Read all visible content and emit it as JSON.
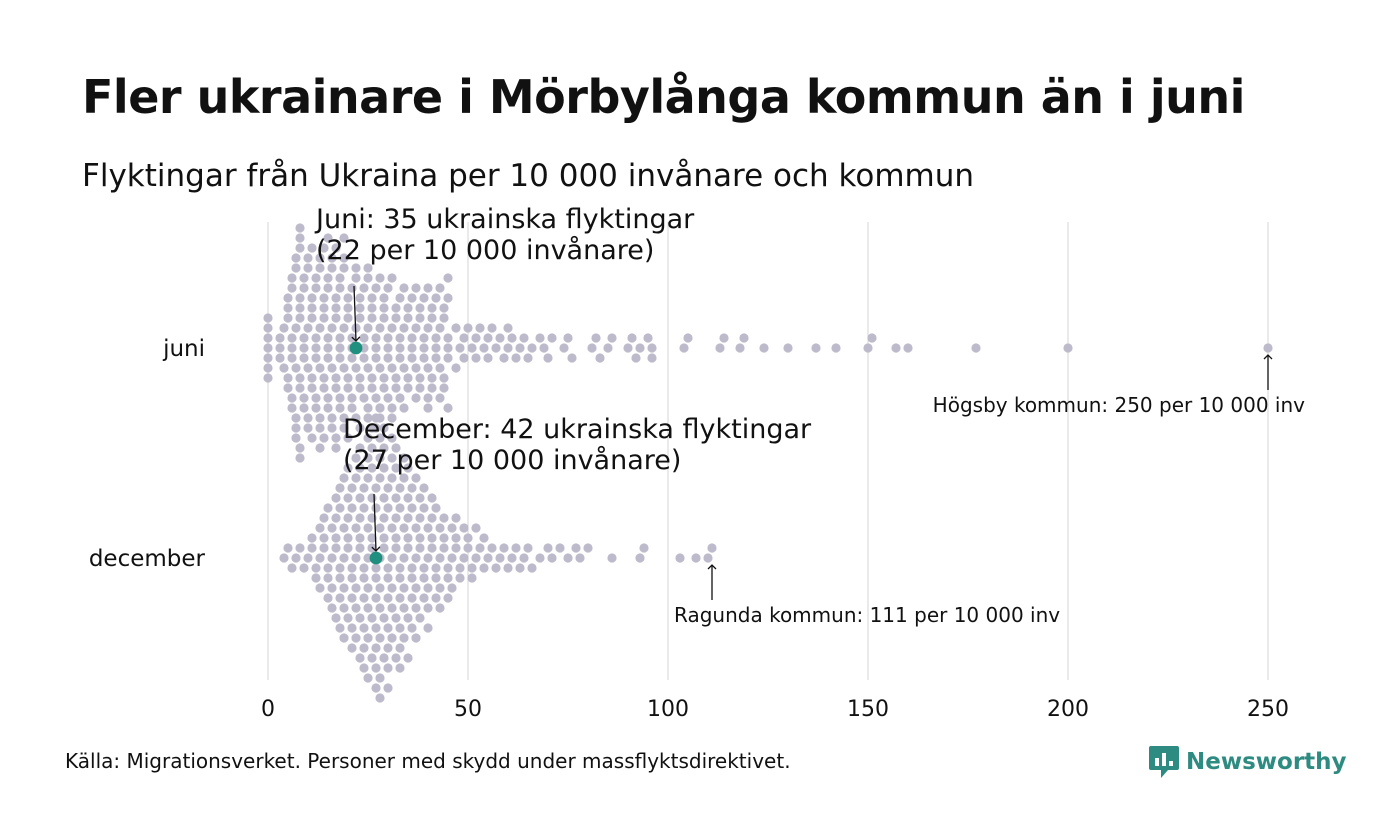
{
  "header": {
    "title": "Fler ukrainare i Mörbylånga kommun än i juni",
    "subtitle": "Flyktingar från Ukraina per 10 000 invånare och kommun"
  },
  "colors": {
    "dot": "#bdbbcb",
    "highlight": "#1f8f80",
    "grid": "#d4d4d4",
    "brand": "#2e8b81"
  },
  "chart_data": {
    "type": "scatter",
    "xlim": [
      0,
      250
    ],
    "x_ticks": [
      "0",
      "50",
      "100",
      "150",
      "200",
      "250"
    ],
    "grid": true,
    "series": [
      {
        "name": "juni",
        "highlight_value": 22,
        "annotation_lines": [
          "Juni: 35 ukrainska flyktingar",
          "(22 per 10 000 invånare)"
        ],
        "extreme_label": "Högsby kommun: 250 per 10 000 inv",
        "extreme_value": 250,
        "values": [
          0,
          0,
          0,
          0,
          0,
          0,
          0,
          3,
          3,
          3,
          4,
          4,
          5,
          5,
          5,
          5,
          5,
          6,
          6,
          6,
          6,
          6,
          6,
          6,
          7,
          7,
          7,
          7,
          7,
          7,
          7,
          8,
          8,
          8,
          8,
          8,
          8,
          8,
          8,
          8,
          8,
          9,
          9,
          9,
          9,
          9,
          9,
          9,
          10,
          10,
          10,
          10,
          10,
          10,
          11,
          11,
          11,
          11,
          11,
          11,
          11,
          12,
          12,
          12,
          12,
          12,
          12,
          12,
          13,
          13,
          13,
          13,
          13,
          13,
          13,
          14,
          14,
          14,
          14,
          14,
          14,
          14,
          15,
          15,
          15,
          15,
          15,
          15,
          15,
          15,
          16,
          16,
          16,
          16,
          16,
          16,
          17,
          17,
          17,
          17,
          17,
          17,
          17,
          17,
          18,
          18,
          18,
          18,
          18,
          18,
          18,
          19,
          19,
          19,
          19,
          19,
          19,
          19,
          20,
          20,
          20,
          20,
          20,
          20,
          21,
          21,
          21,
          21,
          21,
          21,
          22,
          22,
          22,
          22,
          22,
          23,
          23,
          23,
          23,
          23,
          23,
          24,
          24,
          24,
          24,
          24,
          25,
          25,
          25,
          25,
          25,
          25,
          26,
          26,
          26,
          26,
          26,
          27,
          27,
          27,
          27,
          27,
          27,
          28,
          28,
          28,
          28,
          28,
          29,
          29,
          29,
          29,
          29,
          30,
          30,
          30,
          30,
          30,
          31,
          31,
          31,
          31,
          31,
          32,
          32,
          32,
          32,
          33,
          33,
          33,
          33,
          33,
          34,
          34,
          34,
          34,
          35,
          35,
          35,
          35,
          36,
          36,
          36,
          36,
          37,
          37,
          37,
          37,
          38,
          38,
          38,
          38,
          39,
          39,
          39,
          39,
          40,
          40,
          40,
          40,
          40,
          41,
          41,
          41,
          41,
          42,
          42,
          42,
          42,
          43,
          43,
          43,
          43,
          44,
          44,
          44,
          44,
          45,
          45,
          45,
          45,
          45,
          45,
          47,
          47,
          48,
          49,
          49,
          50,
          51,
          52,
          52,
          53,
          54,
          55,
          55,
          56,
          57,
          58,
          59,
          60,
          60,
          61,
          62,
          63,
          64,
          65,
          66,
          68,
          69,
          70,
          71,
          74,
          75,
          76,
          81,
          82,
          83,
          85,
          86,
          90,
          91,
          92,
          93,
          95,
          96,
          96,
          104,
          105,
          113,
          114,
          118,
          119,
          124,
          130,
          137,
          142,
          150,
          151,
          157,
          160,
          177,
          200,
          250
        ]
      },
      {
        "name": "december",
        "highlight_value": 27,
        "annotation_lines": [
          "December: 42 ukrainska flyktingar",
          "(27 per 10 000 invånare)"
        ],
        "extreme_label": "Ragunda kommun: 111 per 10 000 inv",
        "extreme_value": 111,
        "values": [
          4,
          5,
          6,
          7,
          8,
          9,
          10,
          11,
          11,
          12,
          12,
          13,
          13,
          13,
          14,
          14,
          14,
          15,
          15,
          15,
          15,
          16,
          16,
          16,
          16,
          17,
          17,
          17,
          17,
          17,
          18,
          18,
          18,
          18,
          18,
          18,
          19,
          19,
          19,
          19,
          19,
          19,
          20,
          20,
          20,
          20,
          20,
          20,
          21,
          21,
          21,
          21,
          21,
          21,
          21,
          22,
          22,
          22,
          22,
          22,
          22,
          22,
          23,
          23,
          23,
          23,
          23,
          23,
          23,
          23,
          24,
          24,
          24,
          24,
          24,
          24,
          24,
          24,
          25,
          25,
          25,
          25,
          25,
          25,
          25,
          25,
          25,
          26,
          26,
          26,
          26,
          26,
          26,
          26,
          26,
          26,
          27,
          27,
          27,
          27,
          27,
          27,
          27,
          27,
          27,
          27,
          28,
          28,
          28,
          28,
          28,
          28,
          28,
          28,
          28,
          28,
          28,
          29,
          29,
          29,
          29,
          29,
          29,
          29,
          29,
          29,
          30,
          30,
          30,
          30,
          30,
          30,
          30,
          30,
          30,
          31,
          31,
          31,
          31,
          31,
          31,
          31,
          31,
          32,
          32,
          32,
          32,
          32,
          32,
          32,
          32,
          33,
          33,
          33,
          33,
          33,
          33,
          33,
          33,
          34,
          34,
          34,
          34,
          34,
          34,
          34,
          35,
          35,
          35,
          35,
          35,
          35,
          35,
          36,
          36,
          36,
          36,
          36,
          36,
          37,
          37,
          37,
          37,
          37,
          37,
          38,
          38,
          38,
          38,
          38,
          39,
          39,
          39,
          39,
          39,
          40,
          40,
          40,
          40,
          40,
          41,
          41,
          41,
          41,
          42,
          42,
          42,
          42,
          43,
          43,
          43,
          43,
          44,
          44,
          44,
          45,
          45,
          45,
          46,
          46,
          46,
          47,
          47,
          47,
          48,
          48,
          49,
          49,
          50,
          50,
          51,
          51,
          52,
          52,
          53,
          54,
          54,
          55,
          56,
          57,
          58,
          59,
          60,
          61,
          62,
          63,
          64,
          65,
          66,
          68,
          70,
          71,
          73,
          75,
          77,
          78,
          80,
          86,
          93,
          94,
          103,
          107,
          110,
          111
        ]
      }
    ]
  },
  "footer": {
    "source": "Källa: Migrationsverket. Personer med skydd under massflyktsdirektivet.",
    "brand": "Newsworthy"
  }
}
